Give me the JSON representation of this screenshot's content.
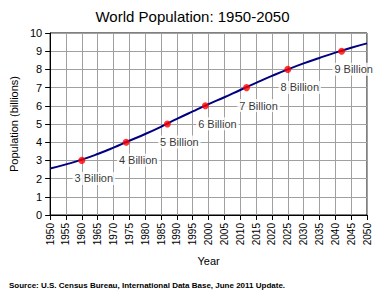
{
  "chart_data": {
    "type": "line",
    "title": "World Population: 1950-2050",
    "x_label": "Year",
    "y_label": "Population (billions)",
    "source": "Source: U.S. Census Bureau, International Data Base, June 2011 Update.",
    "xlim": [
      1950,
      2050
    ],
    "xticks": [
      1950,
      1955,
      1960,
      1965,
      1970,
      1975,
      1980,
      1985,
      1990,
      1995,
      2000,
      2005,
      2010,
      2015,
      2020,
      2025,
      2030,
      2035,
      2040,
      2045,
      2050
    ],
    "ylim": [
      0,
      10
    ],
    "yticks": [
      0,
      1,
      2,
      3,
      4,
      5,
      6,
      7,
      8,
      9,
      10
    ],
    "grid": true,
    "series": [
      {
        "type": "line",
        "color": "#000080",
        "x": [
          1950,
          1955,
          1960,
          1965,
          1970,
          1975,
          1980,
          1985,
          1990,
          1995,
          2000,
          2005,
          2010,
          2015,
          2020,
          2025,
          2030,
          2035,
          2040,
          2045,
          2050
        ],
        "values": [
          2.55,
          2.78,
          3.04,
          3.35,
          3.7,
          4.08,
          4.45,
          4.85,
          5.28,
          5.69,
          6.09,
          6.47,
          6.87,
          7.26,
          7.64,
          8.0,
          8.33,
          8.63,
          8.92,
          9.19,
          9.43
        ]
      },
      {
        "type": "scatter",
        "color": "#ff0000",
        "marker": "circle",
        "data_labels": true,
        "x": [
          1960,
          1974,
          1987,
          1999,
          2012,
          2025,
          2042
        ],
        "values": [
          3,
          4,
          5,
          6,
          7,
          8,
          9
        ],
        "value_labels": [
          "3 Billion",
          "4 Billion",
          "5 Billion",
          "6 Billion",
          "7 Billion",
          "8 Billion",
          "9 Billion"
        ]
      }
    ]
  }
}
